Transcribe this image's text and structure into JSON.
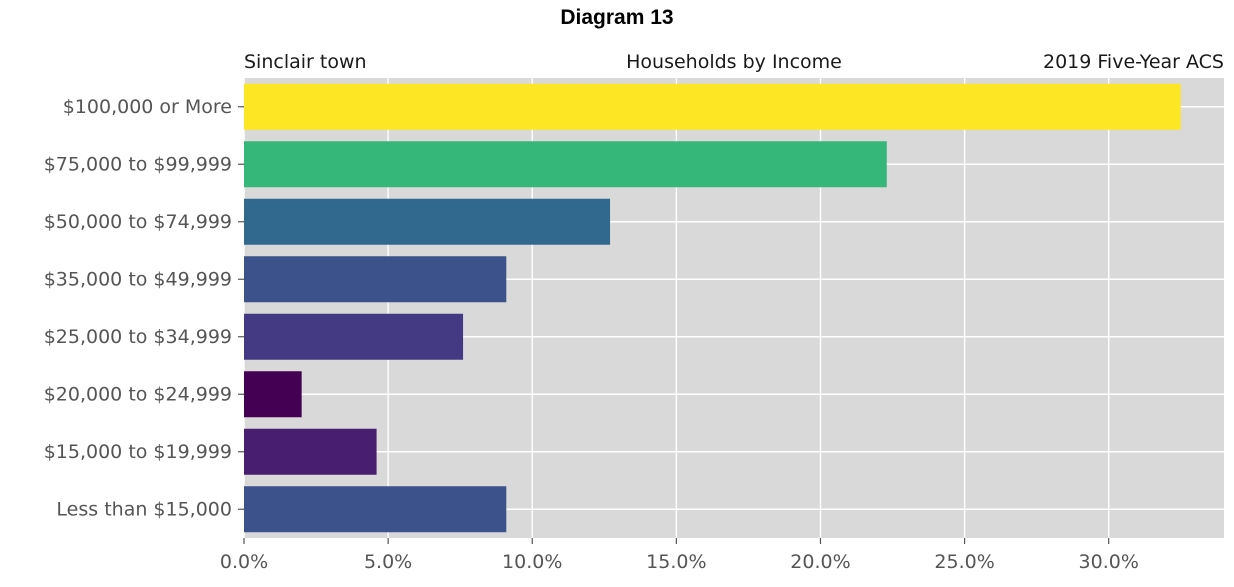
{
  "diagram_title": "Diagram 13",
  "chart_data": {
    "type": "bar",
    "orientation": "horizontal",
    "headers": {
      "left": "Sinclair town",
      "center": "Households by Income",
      "right": "2019 Five-Year ACS"
    },
    "categories": [
      "$100,000 or More",
      "$75,000 to $99,999",
      "$50,000 to $74,999",
      "$35,000 to $49,999",
      "$25,000 to $34,999",
      "$20,000 to $24,999",
      "$15,000 to $19,999",
      "Less than $15,000"
    ],
    "values": [
      32.5,
      22.3,
      12.7,
      9.1,
      7.6,
      2.0,
      4.6,
      9.1
    ],
    "colors": [
      "#fde725",
      "#35b779",
      "#31688e",
      "#3b528b",
      "#443983",
      "#440154",
      "#481f70",
      "#3b528b"
    ],
    "xlim": [
      0,
      34
    ],
    "xticks": [
      0,
      5,
      10,
      15,
      20,
      25,
      30
    ],
    "xtick_labels": [
      "0.0%",
      "5.0%",
      "10.0%",
      "15.0%",
      "20.0%",
      "25.0%",
      "30.0%"
    ],
    "xlabel": "",
    "ylabel": "",
    "grid": true,
    "legend": false,
    "plot_background": "#d9d9d9",
    "grid_color": "#ffffff"
  }
}
